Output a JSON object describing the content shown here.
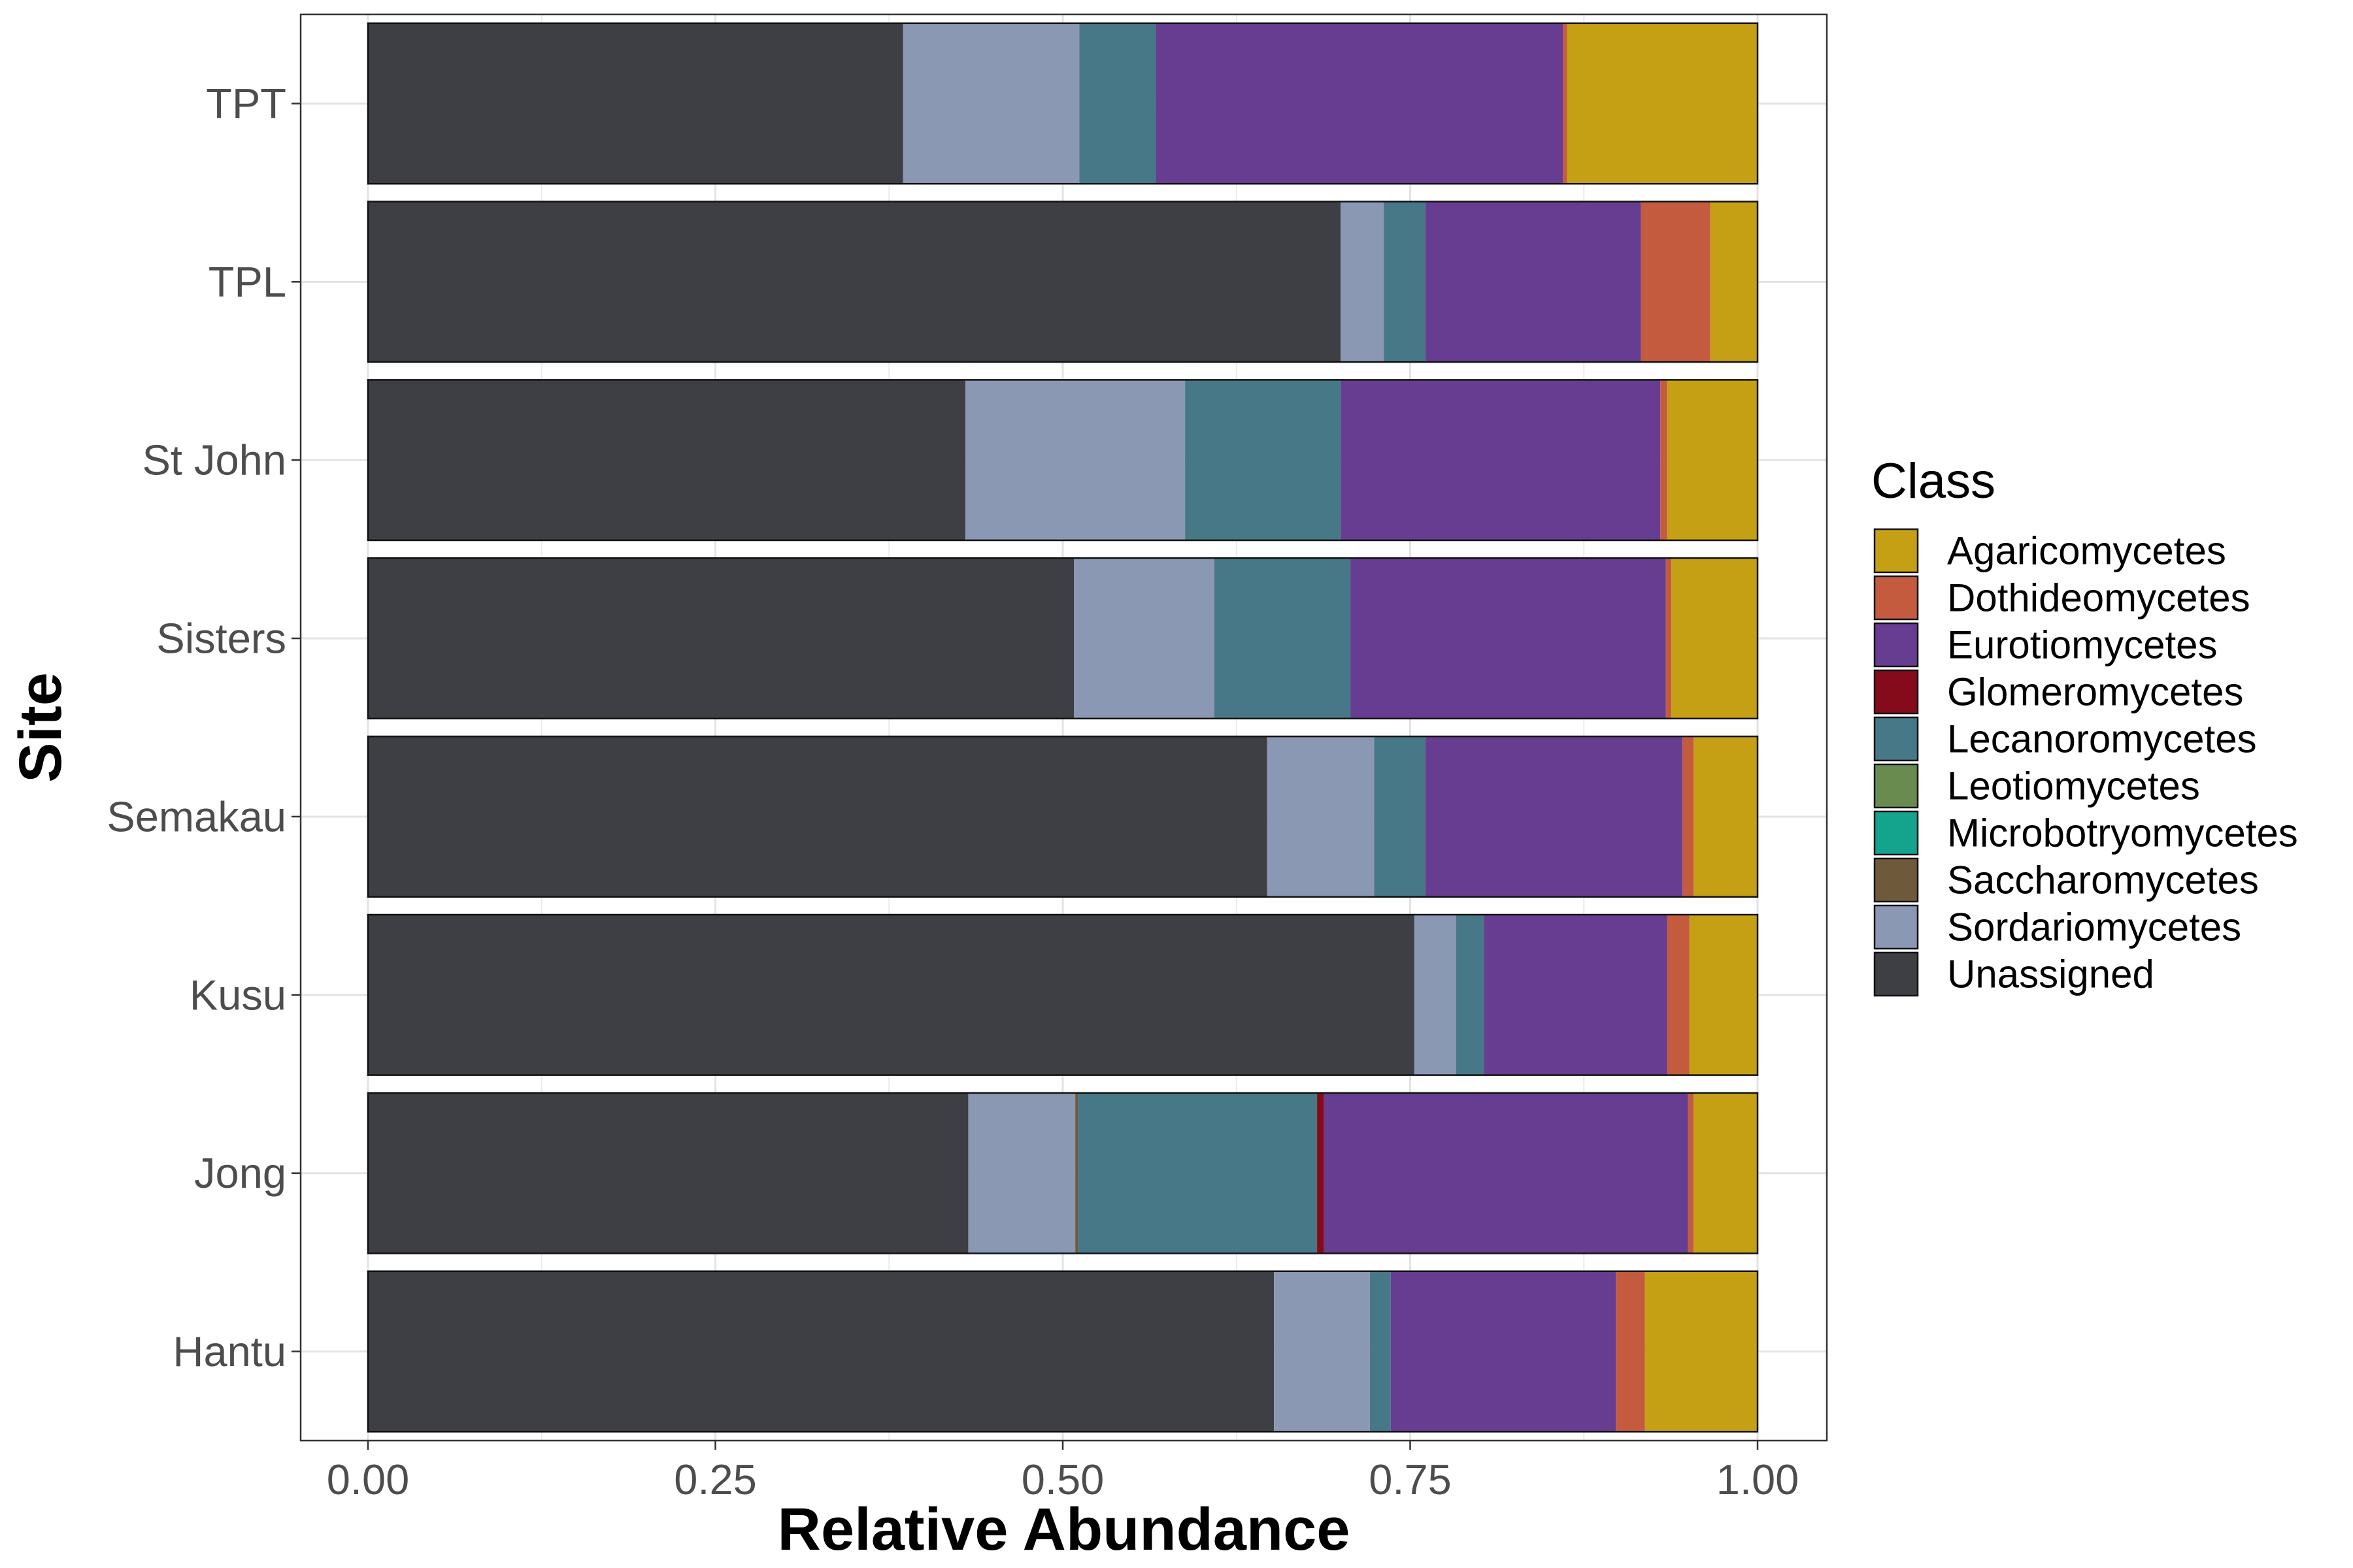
{
  "chart_data": {
    "type": "bar",
    "orientation": "horizontal",
    "stacked": true,
    "xlabel": "Relative Abundance",
    "ylabel": "Site",
    "xlim": [
      0,
      1
    ],
    "x_ticks": [
      "0.00",
      "0.25",
      "0.50",
      "0.75",
      "1.00"
    ],
    "grid": true,
    "legend_position": "right",
    "categories": [
      "TPT",
      "TPL",
      "St John",
      "Sisters",
      "Semakau",
      "Kusu",
      "Jong",
      "Hantu"
    ],
    "series": [
      {
        "name": "Unassigned",
        "color": "#3E3F45",
        "values": [
          0.385,
          0.7,
          0.43,
          0.508,
          0.647,
          0.753,
          0.432,
          0.652
        ]
      },
      {
        "name": "Sordariomycetes",
        "color": "#8A98B3",
        "values": [
          0.127,
          0.031,
          0.158,
          0.101,
          0.077,
          0.03,
          0.077,
          0.069
        ]
      },
      {
        "name": "Saccharomycetes",
        "color": "#6E5A3A",
        "values": [
          0,
          0,
          0,
          0,
          0,
          0,
          0.002,
          0
        ]
      },
      {
        "name": "Microbotryomycetes",
        "color": "#14A38C",
        "values": [
          0,
          0,
          0,
          0,
          0,
          0,
          0,
          0
        ]
      },
      {
        "name": "Leotiomycetes",
        "color": "#6A8B4F",
        "values": [
          0,
          0,
          0,
          0,
          0,
          0,
          0,
          0
        ]
      },
      {
        "name": "Lecanoromycetes",
        "color": "#477887",
        "values": [
          0.055,
          0.03,
          0.112,
          0.098,
          0.037,
          0.02,
          0.172,
          0.015
        ]
      },
      {
        "name": "Glomeromycetes",
        "color": "#850B1B",
        "values": [
          0,
          0,
          0,
          0,
          0,
          0,
          0.005,
          0
        ]
      },
      {
        "name": "Eurotiomycetes",
        "color": "#663D91",
        "values": [
          0.293,
          0.155,
          0.23,
          0.227,
          0.185,
          0.132,
          0.262,
          0.162
        ]
      },
      {
        "name": "Dothideomycetes",
        "color": "#C45B3E",
        "values": [
          0.003,
          0.05,
          0.005,
          0.004,
          0.008,
          0.016,
          0.004,
          0.021
        ]
      },
      {
        "name": "Agaricomycetes",
        "color": "#C5A015",
        "values": [
          0.137,
          0.034,
          0.065,
          0.062,
          0.046,
          0.049,
          0.046,
          0.081
        ]
      }
    ],
    "legend": {
      "title": "Class",
      "items": [
        {
          "label": "Agaricomycetes",
          "color": "#C5A015"
        },
        {
          "label": "Dothideomycetes",
          "color": "#C45B3E"
        },
        {
          "label": "Eurotiomycetes",
          "color": "#663D91"
        },
        {
          "label": "Glomeromycetes",
          "color": "#850B1B"
        },
        {
          "label": "Lecanoromycetes",
          "color": "#477887"
        },
        {
          "label": "Leotiomycetes",
          "color": "#6A8B4F"
        },
        {
          "label": "Microbotryomycetes",
          "color": "#14A38C"
        },
        {
          "label": "Saccharomycetes",
          "color": "#6E5A3A"
        },
        {
          "label": "Sordariomycetes",
          "color": "#8A98B3"
        },
        {
          "label": "Unassigned",
          "color": "#3E3F45"
        }
      ]
    }
  }
}
